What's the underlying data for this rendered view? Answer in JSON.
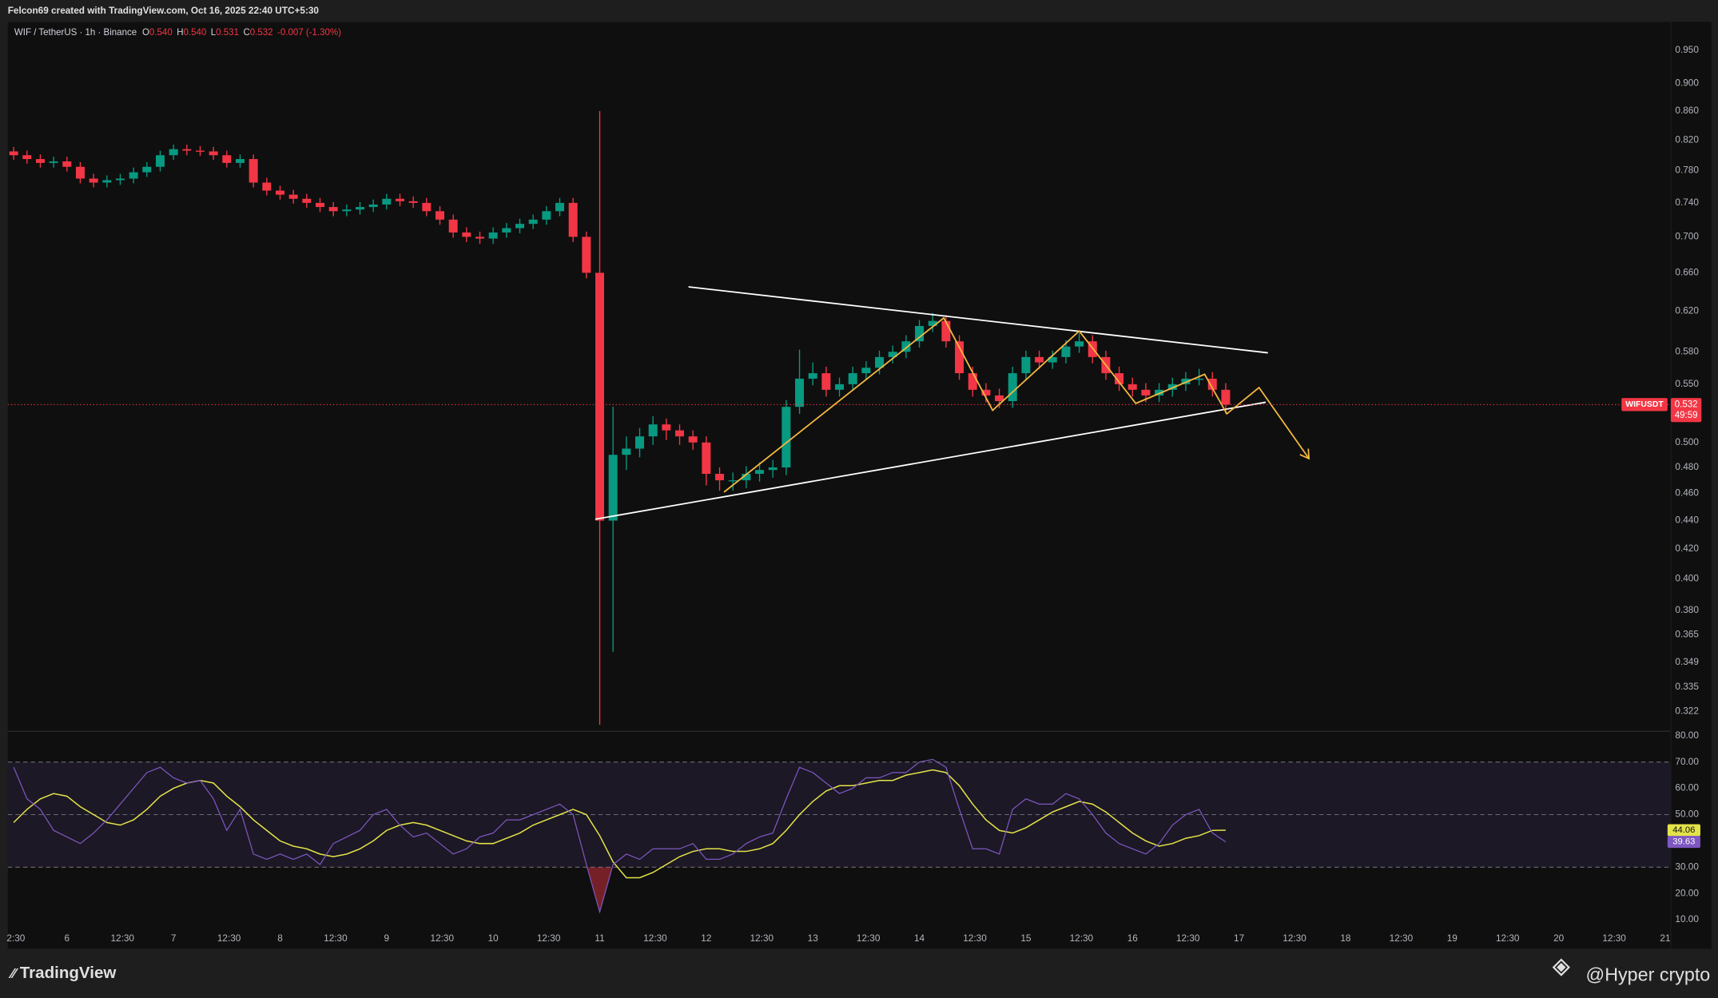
{
  "header": {
    "credit": "Felcon69 created with TradingView.com, Oct 16, 2025 22:40 UTC+5:30"
  },
  "footer": {
    "brand": "TradingView",
    "watermark": "@Hyper crypto"
  },
  "chart_data": {
    "type": "candlestick",
    "title": "WIF / TetherUS · 1h · Binance",
    "ohlc_legend": [
      {
        "key": "O",
        "value": "0.540"
      },
      {
        "key": "H",
        "value": "0.540"
      },
      {
        "key": "L",
        "value": "0.531"
      },
      {
        "key": "C",
        "value": "0.532"
      }
    ],
    "change": "-0.007 (-1.30%)",
    "up_color": "#089981",
    "down_color": "#f23645",
    "log_scale": true,
    "grid": false,
    "xlim": [
      "2025-10-05T10:40",
      "2025-10-21T01:15"
    ],
    "ylim": [
      0.312,
      0.995
    ],
    "yticks": [
      {
        "value": 0.95,
        "label": "0.950"
      },
      {
        "value": 0.9,
        "label": "0.900"
      },
      {
        "value": 0.86,
        "label": "0.860"
      },
      {
        "value": 0.82,
        "label": "0.820"
      },
      {
        "value": 0.78,
        "label": "0.780"
      },
      {
        "value": 0.74,
        "label": "0.740"
      },
      {
        "value": 0.7,
        "label": "0.700"
      },
      {
        "value": 0.66,
        "label": "0.660"
      },
      {
        "value": 0.62,
        "label": "0.620"
      },
      {
        "value": 0.58,
        "label": "0.580"
      },
      {
        "value": 0.55,
        "label": "0.550"
      },
      {
        "value": 0.5,
        "label": "0.500"
      },
      {
        "value": 0.48,
        "label": "0.480"
      },
      {
        "value": 0.46,
        "label": "0.460"
      },
      {
        "value": 0.44,
        "label": "0.440"
      },
      {
        "value": 0.42,
        "label": "0.420"
      },
      {
        "value": 0.4,
        "label": "0.400"
      },
      {
        "value": 0.38,
        "label": "0.380"
      },
      {
        "value": 0.365,
        "label": "0.365"
      },
      {
        "value": 0.349,
        "label": "0.349"
      },
      {
        "value": 0.335,
        "label": "0.335"
      },
      {
        "value": 0.322,
        "label": "0.322"
      }
    ],
    "xticks": [
      {
        "value": "2025-10-05T12:30",
        "label": "2:30"
      },
      {
        "value": "2025-10-06T00:00",
        "label": "6"
      },
      {
        "value": "2025-10-06T12:30",
        "label": "12:30"
      },
      {
        "value": "2025-10-07T00:00",
        "label": "7"
      },
      {
        "value": "2025-10-07T12:30",
        "label": "12:30"
      },
      {
        "value": "2025-10-08T00:00",
        "label": "8"
      },
      {
        "value": "2025-10-08T12:30",
        "label": "12:30"
      },
      {
        "value": "2025-10-09T00:00",
        "label": "9"
      },
      {
        "value": "2025-10-09T12:30",
        "label": "12:30"
      },
      {
        "value": "2025-10-10T00:00",
        "label": "10"
      },
      {
        "value": "2025-10-10T12:30",
        "label": "12:30"
      },
      {
        "value": "2025-10-11T00:00",
        "label": "11"
      },
      {
        "value": "2025-10-11T12:30",
        "label": "12:30"
      },
      {
        "value": "2025-10-12T00:00",
        "label": "12"
      },
      {
        "value": "2025-10-12T12:30",
        "label": "12:30"
      },
      {
        "value": "2025-10-13T00:00",
        "label": "13"
      },
      {
        "value": "2025-10-13T12:30",
        "label": "12:30"
      },
      {
        "value": "2025-10-14T00:00",
        "label": "14"
      },
      {
        "value": "2025-10-14T12:30",
        "label": "12:30"
      },
      {
        "value": "2025-10-15T00:00",
        "label": "15"
      },
      {
        "value": "2025-10-15T12:30",
        "label": "12:30"
      },
      {
        "value": "2025-10-16T00:00",
        "label": "16"
      },
      {
        "value": "2025-10-16T12:30",
        "label": "12:30"
      },
      {
        "value": "2025-10-17T00:00",
        "label": "17"
      },
      {
        "value": "2025-10-17T12:30",
        "label": "12:30"
      },
      {
        "value": "2025-10-18T00:00",
        "label": "18"
      },
      {
        "value": "2025-10-18T12:30",
        "label": "12:30"
      },
      {
        "value": "2025-10-19T00:00",
        "label": "19"
      },
      {
        "value": "2025-10-19T12:30",
        "label": "12:30"
      },
      {
        "value": "2025-10-20T00:00",
        "label": "20"
      },
      {
        "value": "2025-10-20T12:30",
        "label": "12:30"
      },
      {
        "value": "2025-10-21T00:00",
        "label": "21"
      }
    ],
    "x": [
      "2025-10-05T12:00",
      "2025-10-05T15:00",
      "2025-10-05T18:00",
      "2025-10-05T21:00",
      "2025-10-06T00:00",
      "2025-10-06T03:00",
      "2025-10-06T06:00",
      "2025-10-06T09:00",
      "2025-10-06T12:00",
      "2025-10-06T15:00",
      "2025-10-06T18:00",
      "2025-10-06T21:00",
      "2025-10-07T00:00",
      "2025-10-07T03:00",
      "2025-10-07T06:00",
      "2025-10-07T09:00",
      "2025-10-07T12:00",
      "2025-10-07T15:00",
      "2025-10-07T18:00",
      "2025-10-07T21:00",
      "2025-10-08T00:00",
      "2025-10-08T03:00",
      "2025-10-08T06:00",
      "2025-10-08T09:00",
      "2025-10-08T12:00",
      "2025-10-08T15:00",
      "2025-10-08T18:00",
      "2025-10-08T21:00",
      "2025-10-09T00:00",
      "2025-10-09T03:00",
      "2025-10-09T06:00",
      "2025-10-09T09:00",
      "2025-10-09T12:00",
      "2025-10-09T15:00",
      "2025-10-09T18:00",
      "2025-10-09T21:00",
      "2025-10-10T00:00",
      "2025-10-10T03:00",
      "2025-10-10T06:00",
      "2025-10-10T09:00",
      "2025-10-10T12:00",
      "2025-10-10T15:00",
      "2025-10-10T18:00",
      "2025-10-10T21:00",
      "2025-10-11T00:00",
      "2025-10-11T03:00",
      "2025-10-11T06:00",
      "2025-10-11T09:00",
      "2025-10-11T12:00",
      "2025-10-11T15:00",
      "2025-10-11T18:00",
      "2025-10-11T21:00",
      "2025-10-12T00:00",
      "2025-10-12T03:00",
      "2025-10-12T06:00",
      "2025-10-12T09:00",
      "2025-10-12T12:00",
      "2025-10-12T15:00",
      "2025-10-12T18:00",
      "2025-10-12T21:00",
      "2025-10-13T00:00",
      "2025-10-13T03:00",
      "2025-10-13T06:00",
      "2025-10-13T09:00",
      "2025-10-13T12:00",
      "2025-10-13T15:00",
      "2025-10-13T18:00",
      "2025-10-13T21:00",
      "2025-10-14T00:00",
      "2025-10-14T03:00",
      "2025-10-14T06:00",
      "2025-10-14T09:00",
      "2025-10-14T12:00",
      "2025-10-14T15:00",
      "2025-10-14T18:00",
      "2025-10-14T21:00",
      "2025-10-15T00:00",
      "2025-10-15T03:00",
      "2025-10-15T06:00",
      "2025-10-15T09:00",
      "2025-10-15T12:00",
      "2025-10-15T15:00",
      "2025-10-15T18:00",
      "2025-10-15T21:00",
      "2025-10-16T00:00",
      "2025-10-16T03:00",
      "2025-10-16T06:00",
      "2025-10-16T09:00",
      "2025-10-16T12:00",
      "2025-10-16T15:00",
      "2025-10-16T18:00",
      "2025-10-16T21:00"
    ],
    "open": [
      0.805,
      0.8,
      0.795,
      0.79,
      0.792,
      0.785,
      0.77,
      0.765,
      0.768,
      0.77,
      0.778,
      0.785,
      0.8,
      0.808,
      0.806,
      0.805,
      0.8,
      0.79,
      0.795,
      0.765,
      0.755,
      0.75,
      0.745,
      0.74,
      0.735,
      0.73,
      0.732,
      0.735,
      0.738,
      0.745,
      0.742,
      0.74,
      0.73,
      0.72,
      0.705,
      0.7,
      0.698,
      0.705,
      0.71,
      0.715,
      0.72,
      0.73,
      0.74,
      0.7,
      0.66,
      0.44,
      0.49,
      0.495,
      0.505,
      0.515,
      0.51,
      0.505,
      0.5,
      0.475,
      0.47,
      0.47,
      0.475,
      0.478,
      0.48,
      0.53,
      0.555,
      0.56,
      0.545,
      0.55,
      0.56,
      0.565,
      0.575,
      0.58,
      0.59,
      0.605,
      0.61,
      0.59,
      0.56,
      0.545,
      0.54,
      0.535,
      0.56,
      0.575,
      0.57,
      0.575,
      0.585,
      0.59,
      0.575,
      0.56,
      0.55,
      0.545,
      0.54,
      0.545,
      0.55,
      0.555,
      0.555,
      0.545
    ],
    "high": [
      0.811,
      0.806,
      0.801,
      0.798,
      0.798,
      0.791,
      0.776,
      0.774,
      0.776,
      0.784,
      0.791,
      0.806,
      0.814,
      0.814,
      0.812,
      0.811,
      0.806,
      0.801,
      0.801,
      0.771,
      0.761,
      0.756,
      0.751,
      0.746,
      0.741,
      0.738,
      0.741,
      0.744,
      0.751,
      0.751,
      0.748,
      0.746,
      0.736,
      0.726,
      0.711,
      0.706,
      0.711,
      0.716,
      0.721,
      0.726,
      0.736,
      0.746,
      0.746,
      0.706,
      0.86,
      0.53,
      0.505,
      0.512,
      0.522,
      0.52,
      0.515,
      0.51,
      0.505,
      0.48,
      0.476,
      0.481,
      0.484,
      0.486,
      0.536,
      0.582,
      0.57,
      0.566,
      0.556,
      0.566,
      0.571,
      0.581,
      0.586,
      0.596,
      0.611,
      0.618,
      0.616,
      0.596,
      0.566,
      0.551,
      0.546,
      0.566,
      0.581,
      0.581,
      0.581,
      0.591,
      0.598,
      0.596,
      0.581,
      0.566,
      0.556,
      0.551,
      0.551,
      0.556,
      0.561,
      0.564,
      0.561,
      0.551
    ],
    "low": [
      0.794,
      0.789,
      0.784,
      0.784,
      0.779,
      0.764,
      0.759,
      0.759,
      0.762,
      0.764,
      0.772,
      0.779,
      0.794,
      0.8,
      0.799,
      0.794,
      0.784,
      0.784,
      0.759,
      0.749,
      0.744,
      0.739,
      0.734,
      0.729,
      0.724,
      0.724,
      0.726,
      0.729,
      0.732,
      0.736,
      0.734,
      0.724,
      0.714,
      0.699,
      0.694,
      0.692,
      0.692,
      0.699,
      0.704,
      0.709,
      0.714,
      0.724,
      0.694,
      0.654,
      0.315,
      0.355,
      0.478,
      0.488,
      0.498,
      0.502,
      0.498,
      0.494,
      0.466,
      0.462,
      0.462,
      0.464,
      0.469,
      0.472,
      0.474,
      0.524,
      0.549,
      0.539,
      0.539,
      0.544,
      0.554,
      0.559,
      0.569,
      0.574,
      0.584,
      0.599,
      0.584,
      0.554,
      0.539,
      0.534,
      0.529,
      0.529,
      0.554,
      0.564,
      0.564,
      0.569,
      0.579,
      0.569,
      0.554,
      0.544,
      0.539,
      0.534,
      0.534,
      0.539,
      0.544,
      0.549,
      0.539,
      0.524
    ],
    "close": [
      0.8,
      0.795,
      0.79,
      0.792,
      0.785,
      0.77,
      0.765,
      0.768,
      0.77,
      0.778,
      0.785,
      0.8,
      0.808,
      0.806,
      0.805,
      0.8,
      0.79,
      0.795,
      0.765,
      0.755,
      0.75,
      0.745,
      0.74,
      0.735,
      0.73,
      0.732,
      0.735,
      0.738,
      0.745,
      0.742,
      0.74,
      0.73,
      0.72,
      0.705,
      0.7,
      0.698,
      0.705,
      0.71,
      0.715,
      0.72,
      0.73,
      0.74,
      0.7,
      0.66,
      0.44,
      0.49,
      0.495,
      0.505,
      0.515,
      0.51,
      0.505,
      0.5,
      0.475,
      0.47,
      0.47,
      0.475,
      0.478,
      0.48,
      0.53,
      0.555,
      0.56,
      0.545,
      0.55,
      0.56,
      0.565,
      0.575,
      0.58,
      0.59,
      0.605,
      0.61,
      0.59,
      0.56,
      0.545,
      0.54,
      0.535,
      0.56,
      0.575,
      0.57,
      0.575,
      0.585,
      0.59,
      0.575,
      0.56,
      0.55,
      0.545,
      0.54,
      0.545,
      0.55,
      0.555,
      0.555,
      0.545,
      0.532
    ],
    "last_price": {
      "symbol": "WIFUSDT",
      "value": 0.532,
      "countdown": "49:59",
      "color": "#f23645"
    },
    "drawings": [
      {
        "x": [
          "2025-10-11T20:00",
          "2025-10-17T06:30"
        ],
        "y": [
          0.645,
          0.579
        ],
        "color": "#ffffff"
      },
      {
        "x": [
          "2025-10-10T23:00",
          "2025-10-17T06:00"
        ],
        "y": [
          0.441,
          0.534
        ],
        "color": "#ffffff"
      },
      {
        "x": [
          "2025-10-12T04:00",
          "2025-10-14T05:30",
          "2025-10-14T16:30",
          "2025-10-15T12:00",
          "2025-10-16T00:45",
          "2025-10-16T16:15",
          "2025-10-16T21:15",
          "2025-10-17T04:30",
          "2025-10-17T15:45"
        ],
        "y": [
          0.461,
          0.613,
          0.527,
          0.6,
          0.533,
          0.559,
          0.524,
          0.547,
          0.487
        ],
        "color": "#f5b841",
        "arrow": true
      }
    ],
    "indicator": {
      "ylim": [
        6.5,
        81.5
      ],
      "yticks": [
        {
          "value": 80,
          "label": "80.00"
        },
        {
          "value": 70,
          "label": "70.00"
        },
        {
          "value": 60,
          "label": "60.00"
        },
        {
          "value": 50,
          "label": "50.00"
        },
        {
          "value": 40,
          "label": "40.00"
        },
        {
          "value": 30,
          "label": "30.00"
        },
        {
          "value": 20,
          "label": "20.00"
        },
        {
          "value": 10,
          "label": "10.00"
        }
      ],
      "levels": [
        30,
        50,
        70
      ],
      "series": [
        {
          "color": "#e3e34a",
          "values": [
            47,
            52,
            56,
            58,
            57,
            53,
            50,
            47,
            46,
            48,
            52,
            57,
            60,
            62,
            63,
            62,
            57,
            53,
            48,
            44,
            40,
            38,
            37,
            35,
            34,
            35,
            37,
            40,
            44,
            46,
            47,
            46,
            44,
            42,
            40,
            39,
            39,
            41,
            43,
            46,
            48,
            50,
            52,
            50,
            42,
            32,
            26,
            26,
            28,
            31,
            34,
            36,
            37,
            37,
            36,
            36,
            37,
            39,
            44,
            50,
            55,
            59,
            61,
            61,
            62,
            63,
            63,
            65,
            66,
            67,
            66,
            61,
            54,
            48,
            44,
            43,
            45,
            48,
            51,
            53,
            55,
            54,
            51,
            47,
            43,
            40,
            38,
            39,
            41,
            42,
            44,
            44.06
          ]
        },
        {
          "color": "#7e57c2",
          "values": [
            68,
            56,
            52,
            44,
            41.5,
            39,
            43,
            48,
            54,
            60,
            66,
            68,
            64,
            62,
            63,
            56,
            44,
            52,
            35,
            33,
            35,
            33,
            35,
            31,
            39,
            41.5,
            44,
            50,
            52,
            46,
            41.5,
            43,
            39,
            35,
            37,
            41.5,
            43,
            48,
            48,
            50,
            52,
            54,
            50,
            31,
            13,
            31,
            35,
            33,
            37,
            37,
            37,
            39,
            33,
            33,
            35,
            39,
            41.5,
            43,
            56,
            68,
            66,
            62,
            58,
            60,
            64,
            64,
            66,
            66,
            70,
            71,
            68,
            52,
            37,
            37,
            35,
            52,
            56,
            54,
            54,
            58,
            56,
            50,
            43,
            39,
            37,
            35,
            39,
            46,
            50,
            52,
            43,
            39.63
          ]
        }
      ]
    }
  }
}
